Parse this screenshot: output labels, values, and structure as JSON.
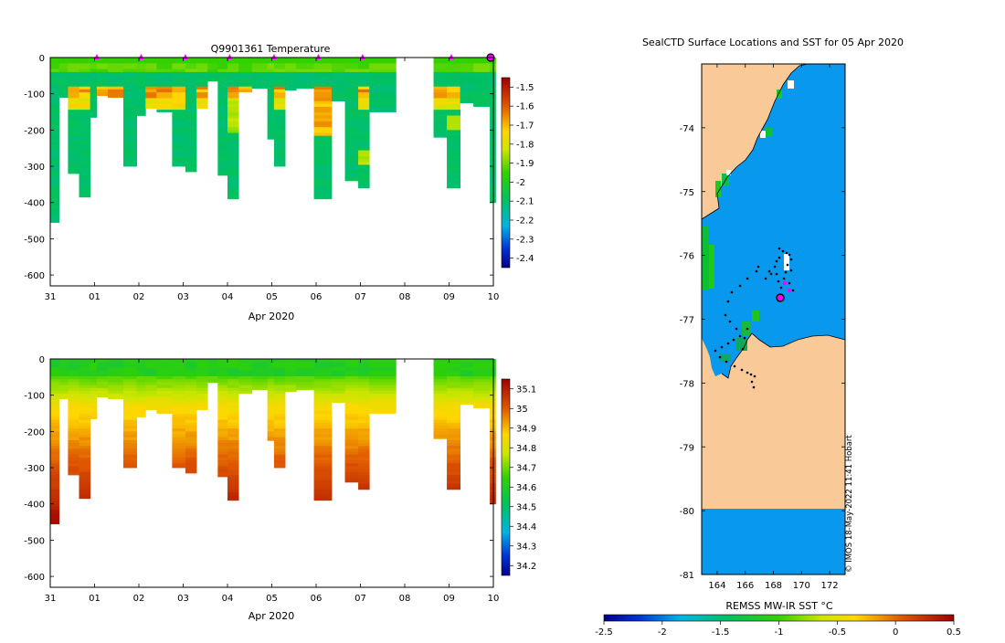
{
  "chart_data": [
    {
      "type": "heatmap",
      "title": "Q9901361  Temperature",
      "xlabel": "Apr 2020",
      "ylabel": "",
      "x_ticks": [
        "31",
        "01",
        "02",
        "03",
        "04",
        "05",
        "06",
        "07",
        "08",
        "09",
        "10"
      ],
      "x_range_days": [
        0,
        10
      ],
      "ylim": [
        -630,
        0
      ],
      "y_ticks": [
        0,
        -100,
        -200,
        -300,
        -400,
        -500,
        -600
      ],
      "marker_days": [
        1.05,
        2.05,
        3.05,
        4.05,
        5.05,
        6.05,
        7.05,
        9.05
      ],
      "colorbar": {
        "ticks": [
          -1.5,
          -1.6,
          -1.7,
          -1.8,
          -1.9,
          -2,
          -2.1,
          -2.2,
          -2.3,
          -2.4
        ],
        "range": [
          -2.45,
          -1.45
        ]
      },
      "profiles": [
        {
          "d0": 0.0,
          "d1": 0.2,
          "depth": 455
        },
        {
          "d0": 0.2,
          "d1": 0.4,
          "depth": 110
        },
        {
          "d0": 0.4,
          "d1": 0.65,
          "depth": 320
        },
        {
          "d0": 0.65,
          "d1": 0.9,
          "depth": 385
        },
        {
          "d0": 0.9,
          "d1": 1.05,
          "depth": 165
        },
        {
          "d0": 1.05,
          "d1": 1.3,
          "depth": 105
        },
        {
          "d0": 1.3,
          "d1": 1.65,
          "depth": 110
        },
        {
          "d0": 1.65,
          "d1": 1.95,
          "depth": 300
        },
        {
          "d0": 1.95,
          "d1": 2.15,
          "depth": 160
        },
        {
          "d0": 2.15,
          "d1": 2.4,
          "depth": 140
        },
        {
          "d0": 2.4,
          "d1": 2.75,
          "depth": 150
        },
        {
          "d0": 2.75,
          "d1": 3.05,
          "depth": 300
        },
        {
          "d0": 3.05,
          "d1": 3.3,
          "depth": 315
        },
        {
          "d0": 3.3,
          "d1": 3.55,
          "depth": 140
        },
        {
          "d0": 3.55,
          "d1": 3.78,
          "depth": 65
        },
        {
          "d0": 3.78,
          "d1": 4.0,
          "depth": 325
        },
        {
          "d0": 4.0,
          "d1": 4.25,
          "depth": 390
        },
        {
          "d0": 4.25,
          "d1": 4.55,
          "depth": 95
        },
        {
          "d0": 4.55,
          "d1": 4.9,
          "depth": 85
        },
        {
          "d0": 4.9,
          "d1": 5.05,
          "depth": 225
        },
        {
          "d0": 5.05,
          "d1": 5.3,
          "depth": 300
        },
        {
          "d0": 5.3,
          "d1": 5.55,
          "depth": 90
        },
        {
          "d0": 5.55,
          "d1": 5.95,
          "depth": 85
        },
        {
          "d0": 5.95,
          "d1": 6.35,
          "depth": 390
        },
        {
          "d0": 6.35,
          "d1": 6.65,
          "depth": 120
        },
        {
          "d0": 6.65,
          "d1": 6.95,
          "depth": 340
        },
        {
          "d0": 6.95,
          "d1": 7.2,
          "depth": 360
        },
        {
          "d0": 7.2,
          "d1": 7.8,
          "depth": 150
        },
        {
          "d0": 8.65,
          "d1": 8.95,
          "depth": 220
        },
        {
          "d0": 8.95,
          "d1": 9.25,
          "depth": 360
        },
        {
          "d0": 9.25,
          "d1": 9.55,
          "depth": 125
        },
        {
          "d0": 9.55,
          "d1": 9.92,
          "depth": 135
        },
        {
          "d0": 9.92,
          "d1": 10.05,
          "depth": 400
        }
      ]
    },
    {
      "type": "heatmap",
      "title": "",
      "xlabel": "Apr 2020",
      "ylabel": "",
      "x_ticks": [
        "31",
        "01",
        "02",
        "03",
        "04",
        "05",
        "06",
        "07",
        "08",
        "09",
        "10"
      ],
      "x_range_days": [
        0,
        10
      ],
      "ylim": [
        -630,
        0
      ],
      "y_ticks": [
        0,
        -100,
        -200,
        -300,
        -400,
        -500,
        -600
      ],
      "colorbar": {
        "ticks": [
          35.1,
          35,
          34.9,
          34.8,
          34.7,
          34.6,
          34.5,
          34.4,
          34.3,
          34.2
        ],
        "range": [
          34.15,
          35.15
        ]
      }
    },
    {
      "type": "map",
      "title": "SealCTD Surface Locations and SST for 05 Apr 2020",
      "x_ticks": [
        164,
        166,
        168,
        170,
        172
      ],
      "y_ticks": [
        -74,
        -75,
        -76,
        -77,
        -78,
        -79,
        -80,
        -81
      ],
      "lon_range": [
        162.9,
        173.1
      ],
      "lat_range": [
        -81.0,
        -73.0
      ],
      "colorbar_label": "REMSS MW-IR SST °C",
      "colorbar_ticks": [
        -2.5,
        -2,
        -1.5,
        -1,
        -0.5,
        0,
        0.5
      ],
      "credit": "© IMOS 18-May-2022 11:41 Hobart",
      "colors": {
        "land": "#f9c998",
        "ocean": "#0898ee",
        "gap": "#ffffff",
        "track": "#000000",
        "current": "#ff00ff"
      }
    }
  ]
}
